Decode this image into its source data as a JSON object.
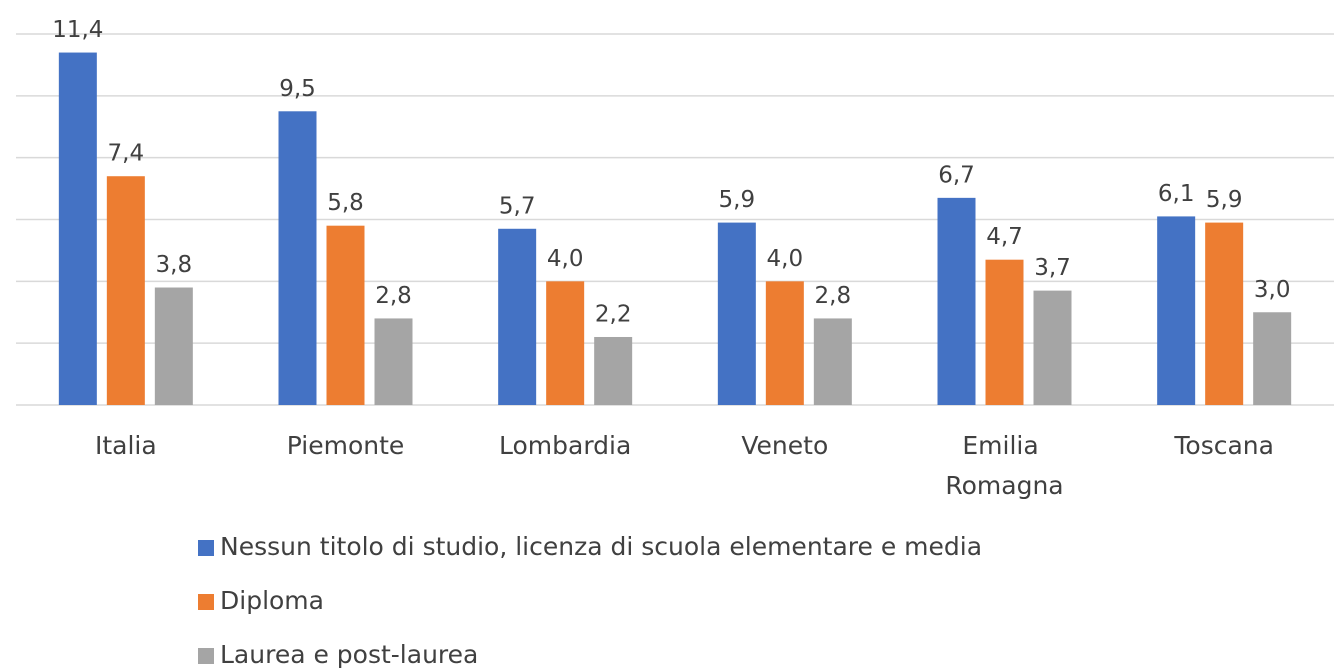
{
  "chart_data": {
    "type": "bar",
    "categories": [
      "Italia",
      "Piemonte",
      "Lombardia",
      "Veneto",
      "Emilia Romagna",
      "Toscana"
    ],
    "series": [
      {
        "name": "Nessun titolo di studio, licenza di scuola elementare e media",
        "color": "#4472c4",
        "values": [
          11.4,
          9.5,
          5.7,
          5.9,
          6.7,
          6.1
        ],
        "value_labels": [
          "11,4",
          "9,5",
          "5,7",
          "5,9",
          "6,7",
          "6,1"
        ]
      },
      {
        "name": "Diploma",
        "color": "#ed7d31",
        "values": [
          7.4,
          5.8,
          4.0,
          4.0,
          4.7,
          5.9
        ],
        "value_labels": [
          "7,4",
          "5,8",
          "4,0",
          "4,0",
          "4,7",
          "5,9"
        ]
      },
      {
        "name": "Laurea e post-laurea",
        "color": "#a5a5a5",
        "values": [
          3.8,
          2.8,
          2.2,
          2.8,
          3.7,
          3.0
        ],
        "value_labels": [
          "3,8",
          "2,8",
          "2,2",
          "2,8",
          "3,7",
          "3,0"
        ]
      }
    ],
    "ylim": [
      0,
      12
    ],
    "yticks": [
      0,
      2,
      4,
      6,
      8,
      10,
      12
    ],
    "grid": true,
    "legend": "bottom"
  }
}
